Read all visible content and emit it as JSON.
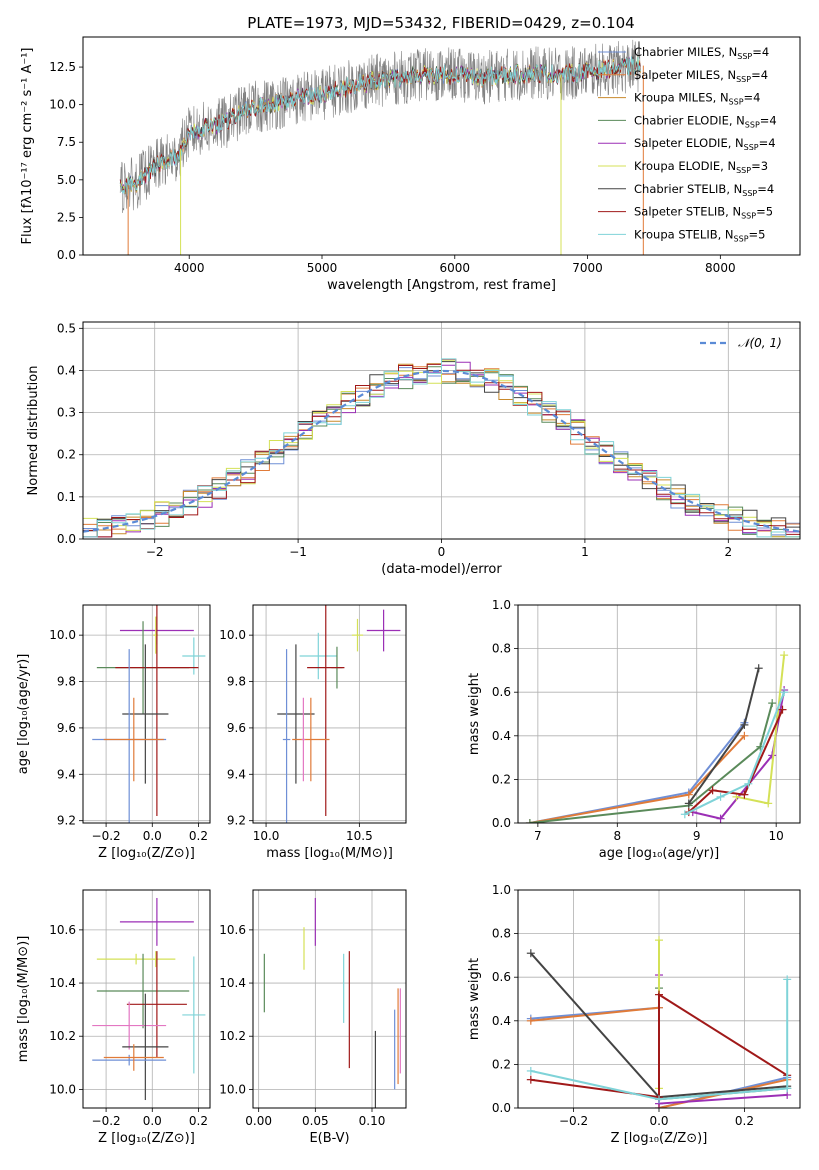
{
  "figure_title": "PLATE=1973, MJD=53432, FIBERID=0429, z=0.104",
  "colors": {
    "Chabrier MILES": "#6f8fd6",
    "Salpeter MILES": "#e07b39",
    "Kroupa MILES": "#c98a2c",
    "Chabrier ELODIE": "#5a8a5a",
    "Salpeter ELODIE": "#9b2fb5",
    "Kroupa ELODIE": "#d4e157",
    "Chabrier STELIB": "#444444",
    "Salpeter STELIB": "#a01919",
    "Kroupa STELIB": "#7fd3d8",
    "data": "#808080",
    "pink": "#e377c2",
    "normal": "#5b8bd6"
  },
  "chart_data": [
    {
      "id": "spectrum",
      "type": "line",
      "title": "PLATE=1973, MJD=53432, FIBERID=0429, z=0.104",
      "xlabel": "wavelength [Angstrom, rest frame]",
      "ylabel": "Flux [fλ10⁻¹⁷ erg cm⁻² s⁻¹ A⁻¹]",
      "xlim": [
        3200,
        8600
      ],
      "ylim": [
        0,
        14.5
      ],
      "xticks": [
        4000,
        5000,
        6000,
        7000,
        8000
      ],
      "xtick_labels": [
        "4000",
        "5000",
        "6000",
        "7000",
        "8000"
      ],
      "yticks": [
        0,
        2.5,
        5,
        7.5,
        10,
        12.5
      ],
      "ytick_labels": [
        "0.0",
        "2.5",
        "5.0",
        "7.5",
        "10.0",
        "12.5"
      ],
      "legend_position": "right",
      "legend": [
        {
          "label": "Chabrier MILES, N",
          "sub": "SSP",
          "tail": "=4",
          "color_key": "Chabrier MILES"
        },
        {
          "label": "Salpeter MILES, N",
          "sub": "SSP",
          "tail": "=4",
          "color_key": "Salpeter MILES"
        },
        {
          "label": "Kroupa MILES, N",
          "sub": "SSP",
          "tail": "=4",
          "color_key": "Kroupa MILES"
        },
        {
          "label": "Chabrier ELODIE, N",
          "sub": "SSP",
          "tail": "=4",
          "color_key": "Chabrier ELODIE"
        },
        {
          "label": "Salpeter ELODIE, N",
          "sub": "SSP",
          "tail": "=4",
          "color_key": "Salpeter ELODIE"
        },
        {
          "label": "Kroupa ELODIE, N",
          "sub": "SSP",
          "tail": "=3",
          "color_key": "Kroupa ELODIE"
        },
        {
          "label": "Chabrier STELIB, N",
          "sub": "SSP",
          "tail": "=4",
          "color_key": "Chabrier STELIB"
        },
        {
          "label": "Salpeter STELIB, N",
          "sub": "SSP",
          "tail": "=5",
          "color_key": "Salpeter STELIB"
        },
        {
          "label": "Kroupa STELIB, N",
          "sub": "SSP",
          "tail": "=5",
          "color_key": "Kroupa STELIB"
        }
      ],
      "continuum": {
        "x": [
          3480,
          3600,
          3700,
          3800,
          3900,
          4000,
          4100,
          4200,
          4300,
          4400,
          4600,
          4800,
          5000,
          5200,
          5400,
          5600,
          5800,
          6000,
          6200,
          6400,
          6600,
          6800,
          7000,
          7200,
          7400
        ],
        "y": [
          4.5,
          4.8,
          5.6,
          6.2,
          6.5,
          8.1,
          8.4,
          8.6,
          8.9,
          9.6,
          10.0,
          10.4,
          10.7,
          11.2,
          11.6,
          11.8,
          12.0,
          12.0,
          11.8,
          12.0,
          12.1,
          12.0,
          12.2,
          12.4,
          12.6
        ]
      },
      "dips": [
        {
          "x": 3540,
          "y": 0,
          "color_key": "Salpeter MILES"
        },
        {
          "x": 3935,
          "y": 0,
          "color_key": "Kroupa ELODIE"
        },
        {
          "x": 6800,
          "y": 0,
          "color_key": "Kroupa ELODIE"
        },
        {
          "x": 7420,
          "y": 0,
          "color_key": "Salpeter MILES"
        }
      ]
    },
    {
      "id": "residuals",
      "type": "histogram",
      "xlabel": "(data-model)/error",
      "ylabel": "Normed distribution",
      "xlim": [
        -2.5,
        2.5
      ],
      "ylim": [
        0,
        0.515
      ],
      "xticks": [
        -2,
        -1,
        0,
        1,
        2
      ],
      "xtick_labels": [
        "−2",
        "−1",
        "0",
        "1",
        "2"
      ],
      "yticks": [
        0,
        0.1,
        0.2,
        0.3,
        0.4,
        0.5
      ],
      "ytick_labels": [
        "0.0",
        "0.1",
        "0.2",
        "0.3",
        "0.4",
        "0.5"
      ],
      "legend_label": "𝒩(0, 1)",
      "bin_width": 0.1
    },
    {
      "id": "z-age",
      "type": "errorbar",
      "xlabel": "Z [log₁₀(Z/Z⊙)]",
      "ylabel": "age  [log₁₀(age/yr)]",
      "xlim": [
        -0.3,
        0.25
      ],
      "ylim": [
        9.19,
        10.13
      ],
      "xticks": [
        -0.2,
        0,
        0.2
      ],
      "xtick_labels": [
        "−0.2",
        "0.0",
        "0.2"
      ],
      "yticks": [
        9.2,
        9.4,
        9.6,
        9.8,
        10.0
      ],
      "ytick_labels": [
        "9.2",
        "9.4",
        "9.6",
        "9.8",
        "10.0"
      ],
      "points": [
        {
          "x": 0.02,
          "y": 10.02,
          "xerr": 0.16,
          "yerr": 0.06,
          "color_key": "Salpeter ELODIE"
        },
        {
          "x": 0.015,
          "y": 10.0,
          "xerr": 0.01,
          "yerr": 0.08,
          "color_key": "Kroupa ELODIE"
        },
        {
          "x": 0.18,
          "y": 9.91,
          "xerr": 0.05,
          "yerr": 0.08,
          "color_key": "Kroupa STELIB"
        },
        {
          "x": -0.04,
          "y": 9.86,
          "xerr": 0.2,
          "yerr": 0.2,
          "color_key": "Chabrier ELODIE"
        },
        {
          "x": 0.02,
          "y": 9.86,
          "xerr": 0.18,
          "yerr": 0.64,
          "color_key": "Salpeter STELIB"
        },
        {
          "x": -0.03,
          "y": 9.66,
          "xerr": 0.1,
          "yerr": 0.3,
          "color_key": "Chabrier STELIB"
        },
        {
          "x": -0.1,
          "y": 9.55,
          "xerr": 0.16,
          "yerr": 0.39,
          "color_key": "Chabrier MILES"
        },
        {
          "x": -0.08,
          "y": 9.55,
          "xerr": 0.13,
          "yerr": 0.18,
          "color_key": "Salpeter MILES"
        }
      ]
    },
    {
      "id": "mass-age",
      "type": "errorbar",
      "xlabel": "mass [log₁₀(M/M⊙)]",
      "ylabel": "",
      "xlim": [
        9.93,
        10.75
      ],
      "ylim": [
        9.19,
        10.13
      ],
      "xticks": [
        10.0,
        10.5
      ],
      "xtick_labels": [
        "10.0",
        "10.5"
      ],
      "yticks": [
        9.2,
        9.4,
        9.6,
        9.8,
        10.0
      ],
      "ytick_labels": [
        "9.2",
        "9.4",
        "9.6",
        "9.8",
        "10.0"
      ],
      "points": [
        {
          "x": 10.63,
          "y": 10.02,
          "xerr": 0.09,
          "yerr": 0.09,
          "color_key": "Salpeter ELODIE"
        },
        {
          "x": 10.49,
          "y": 10.0,
          "xerr": 0.03,
          "yerr": 0.07,
          "color_key": "Kroupa ELODIE"
        },
        {
          "x": 10.28,
          "y": 9.91,
          "xerr": 0.1,
          "yerr": 0.1,
          "color_key": "Kroupa STELIB"
        },
        {
          "x": 10.38,
          "y": 9.86,
          "xerr": 0.03,
          "yerr": 0.09,
          "color_key": "Chabrier ELODIE"
        },
        {
          "x": 10.32,
          "y": 9.86,
          "xerr": 0.1,
          "yerr": 0.64,
          "color_key": "Salpeter STELIB"
        },
        {
          "x": 10.16,
          "y": 9.66,
          "xerr": 0.1,
          "yerr": 0.3,
          "color_key": "Chabrier STELIB"
        },
        {
          "x": 10.11,
          "y": 9.55,
          "xerr": 0.02,
          "yerr": 0.39,
          "color_key": "Chabrier MILES"
        },
        {
          "x": 10.24,
          "y": 9.55,
          "xerr": 0.1,
          "yerr": 0.18,
          "color_key": "Salpeter MILES"
        },
        {
          "x": 10.2,
          "y": 9.55,
          "xerr": 0.01,
          "yerr": 0.18,
          "color_key": "pink"
        }
      ]
    },
    {
      "id": "age-weight",
      "type": "line",
      "xlabel": "age  [log₁₀(age/yr)]",
      "ylabel": "mass weight",
      "xlim": [
        6.75,
        10.3
      ],
      "ylim": [
        0,
        1
      ],
      "xticks": [
        7,
        8,
        9,
        10
      ],
      "xtick_labels": [
        "7",
        "8",
        "9",
        "10"
      ],
      "yticks": [
        0,
        0.2,
        0.4,
        0.6,
        0.8,
        1.0
      ],
      "ytick_labels": [
        "0.0",
        "0.2",
        "0.4",
        "0.6",
        "0.8",
        "1.0"
      ],
      "series": [
        {
          "color_key": "Chabrier MILES",
          "x": [
            6.9,
            8.9,
            9.6
          ],
          "y": [
            0.0,
            0.14,
            0.46
          ]
        },
        {
          "color_key": "Salpeter MILES",
          "x": [
            6.9,
            8.9,
            9.6
          ],
          "y": [
            0.0,
            0.13,
            0.4
          ]
        },
        {
          "color_key": "Chabrier ELODIE",
          "x": [
            6.9,
            8.9,
            9.8,
            9.95
          ],
          "y": [
            0.0,
            0.08,
            0.35,
            0.55
          ]
        },
        {
          "color_key": "Salpeter ELODIE",
          "x": [
            8.95,
            9.3,
            9.95,
            10.1
          ],
          "y": [
            0.05,
            0.02,
            0.31,
            0.61
          ]
        },
        {
          "color_key": "Kroupa ELODIE",
          "x": [
            9.5,
            9.9,
            10.1
          ],
          "y": [
            0.12,
            0.09,
            0.77
          ]
        },
        {
          "color_key": "Chabrier STELIB",
          "x": [
            8.9,
            9.6,
            9.78
          ],
          "y": [
            0.09,
            0.45,
            0.71
          ]
        },
        {
          "color_key": "Salpeter STELIB",
          "x": [
            8.9,
            9.2,
            9.6,
            10.08
          ],
          "y": [
            0.05,
            0.15,
            0.13,
            0.52
          ]
        },
        {
          "color_key": "Kroupa STELIB",
          "x": [
            8.85,
            9.3,
            9.65,
            10.1
          ],
          "y": [
            0.04,
            0.12,
            0.18,
            0.6
          ]
        }
      ]
    },
    {
      "id": "z-mass",
      "type": "errorbar",
      "xlabel": "Z [log₁₀(Z/Z⊙)]",
      "ylabel": "mass [log₁₀(M/M⊙)]",
      "xlim": [
        -0.3,
        0.25
      ],
      "ylim": [
        9.93,
        10.75
      ],
      "xticks": [
        -0.2,
        0,
        0.2
      ],
      "xtick_labels": [
        "−0.2",
        "0.0",
        "0.2"
      ],
      "yticks": [
        10.0,
        10.2,
        10.4,
        10.6
      ],
      "ytick_labels": [
        "10.0",
        "10.2",
        "10.4",
        "10.6"
      ],
      "points": [
        {
          "x": 0.02,
          "y": 10.63,
          "xerr": 0.16,
          "yerr": 0.09,
          "color_key": "Salpeter ELODIE"
        },
        {
          "x": -0.07,
          "y": 10.49,
          "xerr": 0.17,
          "yerr": 0.02,
          "color_key": "Kroupa ELODIE"
        },
        {
          "x": 0.015,
          "y": 10.49,
          "xerr": 0.01,
          "yerr": 0.03,
          "color_key": "Kroupa ELODIE"
        },
        {
          "x": -0.04,
          "y": 10.37,
          "xerr": 0.2,
          "yerr": 0.14,
          "color_key": "Chabrier ELODIE"
        },
        {
          "x": 0.02,
          "y": 10.32,
          "xerr": 0.13,
          "yerr": 0.2,
          "color_key": "Salpeter STELIB"
        },
        {
          "x": 0.18,
          "y": 10.28,
          "xerr": 0.05,
          "yerr": 0.22,
          "color_key": "Kroupa STELIB"
        },
        {
          "x": -0.1,
          "y": 10.24,
          "xerr": 0.16,
          "yerr": 0.09,
          "color_key": "pink"
        },
        {
          "x": -0.03,
          "y": 10.16,
          "xerr": 0.1,
          "yerr": 0.2,
          "color_key": "Chabrier STELIB"
        },
        {
          "x": -0.1,
          "y": 10.11,
          "xerr": 0.16,
          "yerr": 0.02,
          "color_key": "Chabrier MILES"
        },
        {
          "x": -0.08,
          "y": 10.12,
          "xerr": 0.13,
          "yerr": 0.05,
          "color_key": "Salpeter MILES"
        }
      ]
    },
    {
      "id": "ebv-mass",
      "type": "errorbar",
      "xlabel": "E(B-V)",
      "ylabel": "",
      "xlim": [
        -0.005,
        0.13
      ],
      "ylim": [
        9.93,
        10.75
      ],
      "xticks": [
        0.0,
        0.05,
        0.1
      ],
      "xtick_labels": [
        "0.00",
        "0.05",
        "0.10"
      ],
      "yticks": [
        10.0,
        10.2,
        10.4,
        10.6
      ],
      "ytick_labels": [
        "10.0",
        "10.2",
        "10.4",
        "10.6"
      ],
      "points": [
        {
          "x": 0.005,
          "y": 10.4,
          "xerr": 0,
          "yerr": 0.11,
          "color_key": "Chabrier ELODIE"
        },
        {
          "x": 0.04,
          "y": 10.53,
          "xerr": 0,
          "yerr": 0.08,
          "color_key": "Kroupa ELODIE"
        },
        {
          "x": 0.05,
          "y": 10.63,
          "xerr": 0,
          "yerr": 0.09,
          "color_key": "Salpeter ELODIE"
        },
        {
          "x": 0.075,
          "y": 10.38,
          "xerr": 0,
          "yerr": 0.13,
          "color_key": "Kroupa STELIB"
        },
        {
          "x": 0.08,
          "y": 10.3,
          "xerr": 0,
          "yerr": 0.22,
          "color_key": "Salpeter STELIB"
        },
        {
          "x": 0.103,
          "y": 10.06,
          "xerr": 0,
          "yerr": 0.16,
          "color_key": "Chabrier STELIB"
        },
        {
          "x": 0.12,
          "y": 10.15,
          "xerr": 0,
          "yerr": 0.15,
          "color_key": "Chabrier MILES"
        },
        {
          "x": 0.123,
          "y": 10.2,
          "xerr": 0,
          "yerr": 0.18,
          "color_key": "Salpeter MILES"
        },
        {
          "x": 0.125,
          "y": 10.22,
          "xerr": 0,
          "yerr": 0.16,
          "color_key": "pink"
        }
      ]
    },
    {
      "id": "z-weight",
      "type": "line",
      "xlabel": "Z [log₁₀(Z/Z⊙)]",
      "ylabel": "mass weight",
      "xlim": [
        -0.33,
        0.33
      ],
      "ylim": [
        0,
        1
      ],
      "xticks": [
        -0.2,
        0,
        0.2
      ],
      "xtick_labels": [
        "−0.2",
        "0.0",
        "0.2"
      ],
      "yticks": [
        0,
        0.2,
        0.4,
        0.6,
        0.8,
        1.0
      ],
      "ytick_labels": [
        "0.0",
        "0.2",
        "0.4",
        "0.6",
        "0.8",
        "1.0"
      ],
      "series": [
        {
          "color_key": "Chabrier MILES",
          "x": [
            -0.3,
            0.0,
            0.0,
            0.3
          ],
          "y": [
            0.41,
            0.46,
            0.0,
            0.14
          ]
        },
        {
          "color_key": "Salpeter MILES",
          "x": [
            -0.3,
            0.0,
            0.0,
            0.3
          ],
          "y": [
            0.4,
            0.46,
            0.0,
            0.13
          ]
        },
        {
          "color_key": "Chabrier ELODIE",
          "x": [
            0.0,
            0.0,
            0.3
          ],
          "y": [
            0.55,
            0.04,
            0.09
          ]
        },
        {
          "color_key": "Salpeter ELODIE",
          "x": [
            0.0,
            0.0,
            0.3
          ],
          "y": [
            0.61,
            0.02,
            0.06
          ]
        },
        {
          "color_key": "Kroupa ELODIE",
          "x": [
            0.0,
            0.0
          ],
          "y": [
            0.77,
            0.09
          ]
        },
        {
          "color_key": "Chabrier STELIB",
          "x": [
            -0.3,
            0.0,
            0.3
          ],
          "y": [
            0.71,
            0.05,
            0.1
          ]
        },
        {
          "color_key": "Salpeter STELIB",
          "x": [
            -0.3,
            0.0,
            0.0,
            0.3
          ],
          "y": [
            0.13,
            0.05,
            0.52,
            0.15
          ]
        },
        {
          "color_key": "Kroupa STELIB",
          "x": [
            -0.3,
            0.0,
            0.3,
            0.3
          ],
          "y": [
            0.17,
            0.04,
            0.09,
            0.59
          ]
        }
      ]
    }
  ]
}
